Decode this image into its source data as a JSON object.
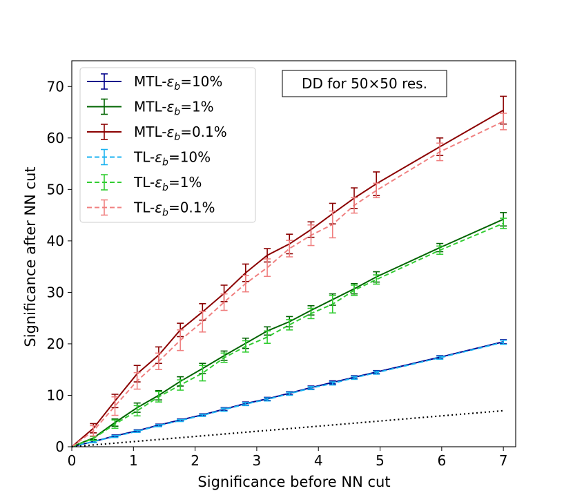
{
  "chart_data": {
    "type": "line",
    "title": "",
    "xlabel": "Significance before NN cut",
    "ylabel": "Significance after NN cut",
    "xlim": [
      0,
      7.2
    ],
    "ylim": [
      0,
      75
    ],
    "xticks": [
      0,
      1,
      2,
      3,
      4,
      5,
      6,
      7
    ],
    "yticks": [
      0,
      10,
      20,
      30,
      40,
      50,
      60,
      70
    ],
    "annotation": "DD for 50×50 res.",
    "legend_position": "top-left",
    "grid": false,
    "x": [
      0,
      0.35,
      0.7,
      1.06,
      1.41,
      1.76,
      2.12,
      2.47,
      2.82,
      3.17,
      3.53,
      3.88,
      4.23,
      4.58,
      4.94,
      5.97,
      7.0
    ],
    "series": [
      {
        "name": "MTL-ε_b=10%",
        "label_prefix": "MTL-",
        "label_suffix": "=10%",
        "color": "#00008b",
        "style": "solid",
        "values": [
          0,
          1.0,
          2.1,
          3.1,
          4.2,
          5.2,
          6.2,
          7.3,
          8.4,
          9.3,
          10.4,
          11.5,
          12.5,
          13.5,
          14.5,
          17.4,
          20.4
        ],
        "errors": [
          0,
          0.2,
          0.2,
          0.2,
          0.2,
          0.2,
          0.2,
          0.3,
          0.3,
          0.3,
          0.3,
          0.3,
          0.3,
          0.3,
          0.3,
          0.3,
          0.4
        ]
      },
      {
        "name": "MTL-ε_b=1%",
        "label_prefix": "MTL-",
        "label_suffix": "=1%",
        "color": "#006400",
        "style": "solid",
        "values": [
          0,
          1.7,
          4.7,
          7.6,
          10.0,
          12.7,
          15.2,
          17.7,
          20.1,
          22.5,
          24.3,
          26.5,
          28.6,
          30.7,
          33.0,
          38.7,
          44.2
        ],
        "errors": [
          0,
          0.3,
          0.7,
          0.9,
          0.9,
          0.9,
          1.0,
          0.9,
          1.0,
          0.8,
          1.0,
          0.9,
          1.1,
          1.0,
          1.0,
          0.8,
          1.3
        ]
      },
      {
        "name": "MTL-ε_b=0.1%",
        "label_prefix": "MTL-",
        "label_suffix": "=0.1%",
        "color": "#8b0000",
        "style": "solid",
        "values": [
          0,
          3.6,
          8.9,
          14.2,
          17.8,
          22.7,
          26.2,
          29.8,
          33.8,
          37.2,
          39.4,
          42.2,
          45.3,
          48.3,
          51.1,
          58.3,
          65.4
        ],
        "errors": [
          0,
          0.9,
          1.3,
          1.6,
          1.6,
          1.3,
          1.6,
          1.6,
          1.7,
          1.3,
          1.9,
          1.5,
          2.0,
          2.0,
          2.3,
          1.7,
          2.7
        ]
      },
      {
        "name": "TL-ε_b=10%",
        "label_prefix": "TL-",
        "label_suffix": "=10%",
        "color": "#1ab2f0",
        "style": "dashed",
        "values": [
          0,
          1.0,
          2.0,
          3.0,
          4.1,
          5.1,
          6.1,
          7.2,
          8.3,
          9.2,
          10.3,
          11.4,
          12.3,
          13.4,
          14.4,
          17.3,
          20.3
        ],
        "errors": [
          0,
          0.2,
          0.2,
          0.2,
          0.2,
          0.2,
          0.2,
          0.3,
          0.3,
          0.3,
          0.3,
          0.3,
          0.3,
          0.3,
          0.3,
          0.3,
          0.4
        ]
      },
      {
        "name": "TL-ε_b=1%",
        "label_prefix": "TL-",
        "label_suffix": "=1%",
        "color": "#32cd32",
        "style": "dashed",
        "values": [
          0,
          1.6,
          4.4,
          7.0,
          9.7,
          12.0,
          14.3,
          17.3,
          19.5,
          21.3,
          23.7,
          25.9,
          27.7,
          30.4,
          32.5,
          38.2,
          43.4
        ],
        "errors": [
          0,
          0.4,
          0.8,
          1.0,
          1.0,
          1.0,
          1.5,
          0.9,
          1.1,
          1.2,
          1.0,
          1.0,
          1.7,
          1.0,
          0.9,
          0.8,
          1.0
        ]
      },
      {
        "name": "TL-ε_b=0.1%",
        "label_prefix": "TL-",
        "label_suffix": "=0.1%",
        "color": "#f08080",
        "style": "dashed",
        "values": [
          0,
          3.1,
          7.9,
          12.8,
          16.6,
          20.7,
          24.3,
          28.1,
          31.7,
          34.8,
          38.5,
          41.1,
          43.2,
          46.9,
          49.8,
          57.3,
          63.2
        ],
        "errors": [
          0,
          1.0,
          1.8,
          1.6,
          1.6,
          2.0,
          2.0,
          1.6,
          1.6,
          1.7,
          1.6,
          2.0,
          2.6,
          1.5,
          1.4,
          1.7,
          1.6
        ]
      },
      {
        "name": "reference",
        "label_prefix": "",
        "label_suffix": "",
        "color": "#000000",
        "style": "dotted",
        "in_legend": false,
        "x": [
          0,
          7.0
        ],
        "values": [
          0,
          7.0
        ]
      }
    ]
  }
}
